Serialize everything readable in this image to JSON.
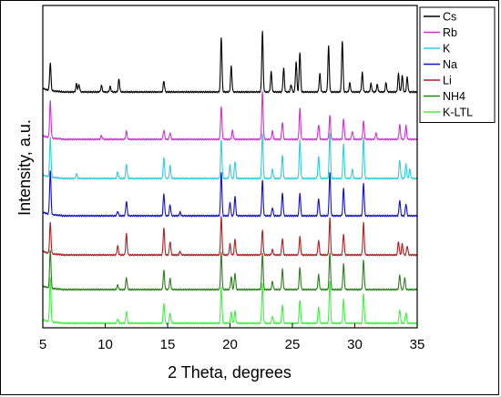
{
  "chart_data": {
    "type": "line",
    "xlabel": "2 Theta, degrees",
    "ylabel": "Intensity, a.u.",
    "xlim": [
      5,
      35
    ],
    "x_ticks": [
      "5",
      "10",
      "15",
      "20",
      "25",
      "30",
      "35"
    ],
    "y_scale": "stacked offset, arbitrary units",
    "legend_position": "top-right",
    "series": [
      {
        "name": "Cs",
        "color": "#000000",
        "peaks": [
          [
            5.6,
            30
          ],
          [
            7.7,
            9
          ],
          [
            7.9,
            8
          ],
          [
            9.7,
            7
          ],
          [
            10.4,
            6
          ],
          [
            11.1,
            14
          ],
          [
            14.7,
            12
          ],
          [
            19.3,
            60
          ],
          [
            20.1,
            28
          ],
          [
            22.6,
            66
          ],
          [
            23.3,
            22
          ],
          [
            24.3,
            26
          ],
          [
            24.9,
            8
          ],
          [
            25.3,
            33
          ],
          [
            25.6,
            44
          ],
          [
            27.2,
            20
          ],
          [
            27.9,
            50
          ],
          [
            29.0,
            56
          ],
          [
            29.6,
            10
          ],
          [
            30.6,
            21
          ],
          [
            31.3,
            9
          ],
          [
            31.8,
            8
          ],
          [
            32.5,
            10
          ],
          [
            33.5,
            20
          ],
          [
            33.8,
            18
          ],
          [
            34.2,
            16
          ]
        ]
      },
      {
        "name": "Rb",
        "color": "#cc33cc",
        "peaks": [
          [
            5.6,
            40
          ],
          [
            9.7,
            4
          ],
          [
            11.7,
            9
          ],
          [
            14.7,
            10
          ],
          [
            15.2,
            7
          ],
          [
            19.3,
            36
          ],
          [
            20.2,
            10
          ],
          [
            22.6,
            52
          ],
          [
            23.4,
            9
          ],
          [
            24.2,
            19
          ],
          [
            25.6,
            34
          ],
          [
            27.1,
            16
          ],
          [
            28.0,
            26
          ],
          [
            29.1,
            23
          ],
          [
            29.8,
            9
          ],
          [
            30.7,
            20
          ],
          [
            31.7,
            7
          ],
          [
            33.6,
            16
          ],
          [
            34.1,
            15
          ]
        ]
      },
      {
        "name": "K",
        "color": "#33ccdd",
        "peaks": [
          [
            5.6,
            44
          ],
          [
            7.7,
            5
          ],
          [
            11.0,
            7
          ],
          [
            11.7,
            16
          ],
          [
            14.7,
            22
          ],
          [
            15.2,
            14
          ],
          [
            19.3,
            42
          ],
          [
            20.0,
            15
          ],
          [
            20.4,
            19
          ],
          [
            22.6,
            50
          ],
          [
            23.4,
            10
          ],
          [
            24.2,
            25
          ],
          [
            25.6,
            42
          ],
          [
            27.1,
            24
          ],
          [
            28.0,
            50
          ],
          [
            29.1,
            38
          ],
          [
            29.8,
            10
          ],
          [
            30.7,
            45
          ],
          [
            33.6,
            20
          ],
          [
            34.1,
            16
          ],
          [
            34.4,
            10
          ]
        ]
      },
      {
        "name": "Na",
        "color": "#1111cc",
        "peaks": [
          [
            5.6,
            48
          ],
          [
            11.0,
            5
          ],
          [
            11.7,
            16
          ],
          [
            14.7,
            24
          ],
          [
            15.2,
            12
          ],
          [
            16.0,
            4
          ],
          [
            19.3,
            48
          ],
          [
            20.0,
            15
          ],
          [
            20.4,
            21
          ],
          [
            22.6,
            39
          ],
          [
            23.4,
            9
          ],
          [
            24.2,
            25
          ],
          [
            25.6,
            25
          ],
          [
            27.1,
            19
          ],
          [
            28.0,
            48
          ],
          [
            29.1,
            30
          ],
          [
            30.7,
            36
          ],
          [
            33.6,
            17
          ],
          [
            34.1,
            13
          ]
        ]
      },
      {
        "name": "Li",
        "color": "#aa2222",
        "peaks": [
          [
            5.6,
            34
          ],
          [
            11.0,
            10
          ],
          [
            11.7,
            23
          ],
          [
            14.7,
            30
          ],
          [
            15.2,
            15
          ],
          [
            16.0,
            4
          ],
          [
            19.3,
            42
          ],
          [
            20.0,
            12
          ],
          [
            20.4,
            17
          ],
          [
            22.6,
            27
          ],
          [
            23.4,
            6
          ],
          [
            24.2,
            18
          ],
          [
            25.6,
            20
          ],
          [
            27.1,
            16
          ],
          [
            28.0,
            40
          ],
          [
            29.1,
            23
          ],
          [
            30.7,
            35
          ],
          [
            33.5,
            15
          ],
          [
            33.8,
            12
          ],
          [
            34.2,
            10
          ]
        ]
      },
      {
        "name": "NH4",
        "color": "#2e7d20",
        "peaks": [
          [
            5.6,
            42
          ],
          [
            11.0,
            5
          ],
          [
            11.7,
            13
          ],
          [
            14.7,
            21
          ],
          [
            15.2,
            12
          ],
          [
            19.3,
            40
          ],
          [
            20.1,
            14
          ],
          [
            20.4,
            18
          ],
          [
            22.6,
            40
          ],
          [
            23.4,
            9
          ],
          [
            24.2,
            22
          ],
          [
            25.6,
            24
          ],
          [
            27.1,
            16
          ],
          [
            28.0,
            40
          ],
          [
            29.1,
            28
          ],
          [
            30.7,
            32
          ],
          [
            33.6,
            16
          ],
          [
            34.0,
            13
          ]
        ]
      },
      {
        "name": "K-LTL",
        "color": "#44ee44",
        "peaks": [
          [
            5.6,
            48
          ],
          [
            11.0,
            5
          ],
          [
            11.7,
            13
          ],
          [
            14.7,
            22
          ],
          [
            15.2,
            11
          ],
          [
            19.3,
            40
          ],
          [
            20.1,
            12
          ],
          [
            20.4,
            13
          ],
          [
            22.6,
            43
          ],
          [
            23.4,
            8
          ],
          [
            24.2,
            20
          ],
          [
            25.6,
            26
          ],
          [
            27.1,
            18
          ],
          [
            28.0,
            46
          ],
          [
            29.1,
            26
          ],
          [
            30.7,
            33
          ],
          [
            33.6,
            15
          ],
          [
            34.1,
            12
          ]
        ]
      }
    ]
  }
}
